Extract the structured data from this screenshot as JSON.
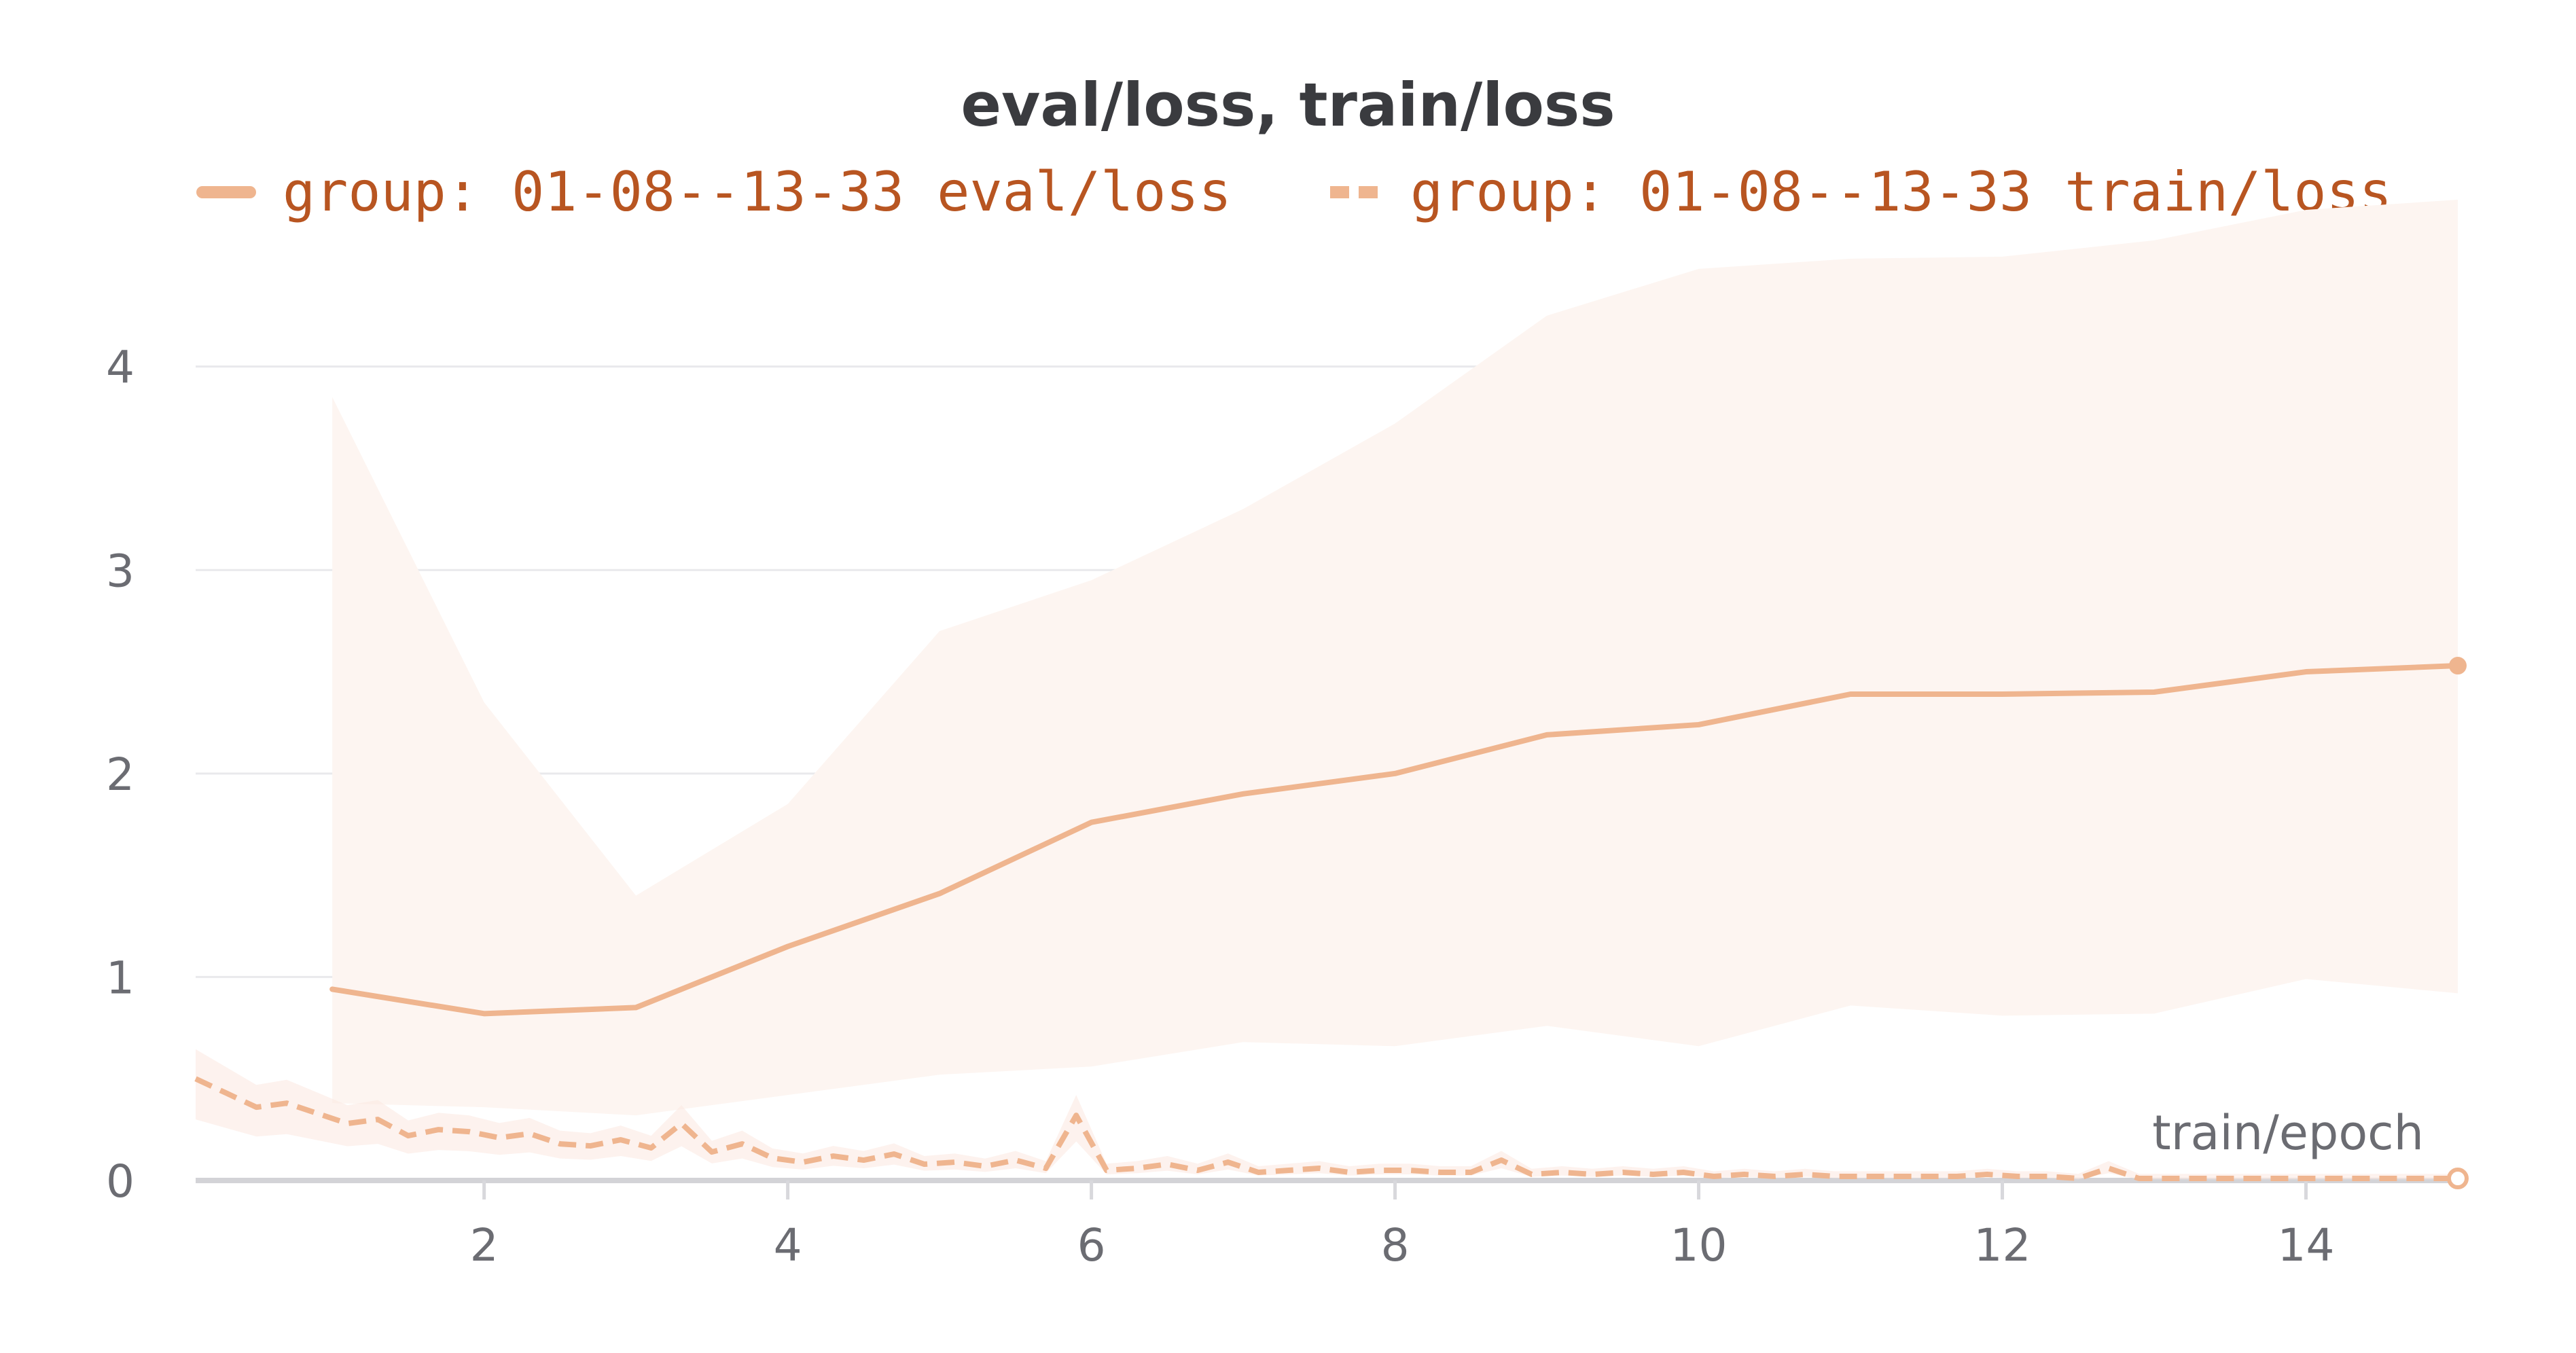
{
  "chart_data": {
    "type": "line",
    "title": "eval/loss, train/loss",
    "xlabel": "train/epoch",
    "ylabel": "",
    "xlim": [
      0.1,
      15
    ],
    "ylim": [
      0,
      4.8
    ],
    "x_ticks": [
      2,
      4,
      6,
      8,
      10,
      12,
      14
    ],
    "y_ticks": [
      0,
      1,
      2,
      3,
      4
    ],
    "grid": true,
    "legend_position": "top",
    "colors": {
      "line": "#efb58f",
      "band": "#fdf5f1",
      "legend_text": "#b85521"
    },
    "series": [
      {
        "name": "group: 01-08--13-33 eval/loss",
        "style": "solid",
        "x": [
          1,
          2,
          3,
          4,
          5,
          6,
          7,
          8,
          9,
          10,
          11,
          12,
          13,
          14,
          15
        ],
        "y": [
          0.94,
          0.82,
          0.85,
          1.15,
          1.41,
          1.76,
          1.9,
          2.0,
          2.19,
          2.24,
          2.39,
          2.39,
          2.4,
          2.5,
          2.53
        ],
        "band_upper": [
          3.85,
          2.35,
          1.4,
          1.85,
          2.7,
          2.95,
          3.3,
          3.72,
          4.25,
          4.48,
          4.53,
          4.54,
          4.62,
          4.77,
          4.82
        ],
        "band_lower": [
          0.38,
          0.36,
          0.32,
          0.42,
          0.52,
          0.56,
          0.68,
          0.66,
          0.76,
          0.66,
          0.86,
          0.81,
          0.82,
          0.99,
          0.92
        ]
      },
      {
        "name": "group: 01-08--13-33 train/loss",
        "style": "dashed",
        "x": [
          0.1,
          0.3,
          0.5,
          0.7,
          0.9,
          1.1,
          1.3,
          1.5,
          1.7,
          1.9,
          2.1,
          2.3,
          2.5,
          2.7,
          2.9,
          3.1,
          3.3,
          3.5,
          3.7,
          3.9,
          4.1,
          4.3,
          4.5,
          4.7,
          4.9,
          5.1,
          5.3,
          5.5,
          5.7,
          5.9,
          6.1,
          6.3,
          6.5,
          6.7,
          6.9,
          7.1,
          7.3,
          7.5,
          7.7,
          7.9,
          8.1,
          8.3,
          8.5,
          8.7,
          8.9,
          9.1,
          9.3,
          9.5,
          9.7,
          9.9,
          10.1,
          10.3,
          10.5,
          10.7,
          10.9,
          11.1,
          11.3,
          11.5,
          11.7,
          11.9,
          12.1,
          12.3,
          12.5,
          12.7,
          12.9,
          13.1,
          13.3,
          13.5,
          13.7,
          13.9,
          14.1,
          14.3,
          14.5,
          14.7,
          14.9,
          15.0
        ],
        "y": [
          0.5,
          0.43,
          0.36,
          0.38,
          0.33,
          0.28,
          0.3,
          0.22,
          0.25,
          0.24,
          0.21,
          0.23,
          0.18,
          0.17,
          0.2,
          0.16,
          0.28,
          0.14,
          0.18,
          0.11,
          0.09,
          0.12,
          0.1,
          0.13,
          0.08,
          0.09,
          0.07,
          0.1,
          0.06,
          0.32,
          0.05,
          0.06,
          0.08,
          0.05,
          0.09,
          0.04,
          0.05,
          0.06,
          0.04,
          0.05,
          0.05,
          0.04,
          0.04,
          0.1,
          0.03,
          0.04,
          0.03,
          0.04,
          0.03,
          0.04,
          0.02,
          0.03,
          0.02,
          0.03,
          0.02,
          0.02,
          0.02,
          0.02,
          0.02,
          0.03,
          0.02,
          0.02,
          0.01,
          0.06,
          0.01,
          0.01,
          0.01,
          0.01,
          0.01,
          0.01,
          0.01,
          0.01,
          0.01,
          0.01,
          0.01,
          0.01
        ]
      }
    ]
  }
}
